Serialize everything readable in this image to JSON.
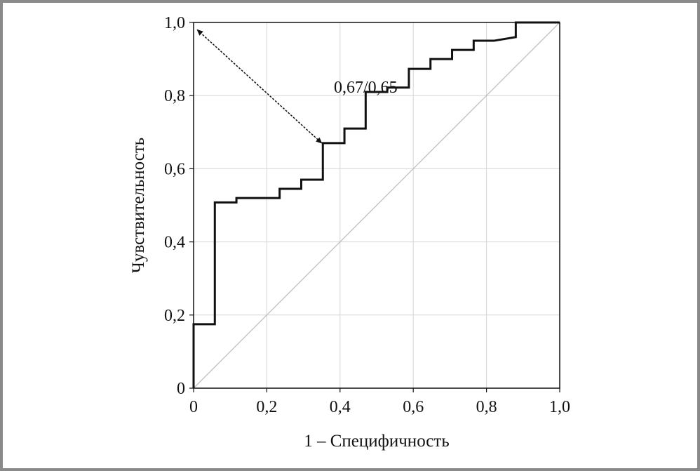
{
  "chart_data": {
    "type": "line",
    "xlabel": "1 – Специфичность",
    "ylabel": "Чувствительность",
    "xlim": [
      0,
      1
    ],
    "ylim": [
      0,
      1
    ],
    "grid": true,
    "x_tick_labels": [
      "0",
      "0,2",
      "0,4",
      "0,6",
      "0,8",
      "1,0"
    ],
    "y_tick_labels": [
      "0",
      "0,2",
      "0,4",
      "0,6",
      "0,8",
      "1,0"
    ],
    "x_ticks": [
      0,
      0.2,
      0.4,
      0.6,
      0.8,
      1.0
    ],
    "y_ticks": [
      0,
      0.2,
      0.4,
      0.6,
      0.8,
      1.0
    ],
    "series": [
      {
        "color": "#111111",
        "points": [
          [
            0,
            0
          ],
          [
            0,
            0.175
          ],
          [
            0.058,
            0.175
          ],
          [
            0.058,
            0.508
          ],
          [
            0.117,
            0.508
          ],
          [
            0.117,
            0.52
          ],
          [
            0.235,
            0.52
          ],
          [
            0.235,
            0.545
          ],
          [
            0.294,
            0.545
          ],
          [
            0.294,
            0.57
          ],
          [
            0.353,
            0.57
          ],
          [
            0.353,
            0.67
          ],
          [
            0.412,
            0.67
          ],
          [
            0.412,
            0.71
          ],
          [
            0.47,
            0.71
          ],
          [
            0.47,
            0.81
          ],
          [
            0.529,
            0.81
          ],
          [
            0.529,
            0.822
          ],
          [
            0.588,
            0.822
          ],
          [
            0.588,
            0.873
          ],
          [
            0.647,
            0.873
          ],
          [
            0.647,
            0.9
          ],
          [
            0.706,
            0.9
          ],
          [
            0.706,
            0.925
          ],
          [
            0.765,
            0.925
          ],
          [
            0.765,
            0.95
          ],
          [
            0.82,
            0.95
          ],
          [
            0.88,
            0.96
          ],
          [
            0.88,
            1.0
          ],
          [
            1.0,
            1.0
          ]
        ]
      },
      {
        "color": "#c0c0c0",
        "points": [
          [
            0,
            0
          ],
          [
            1,
            1
          ]
        ]
      }
    ],
    "annotation": {
      "text": "0,67/0,65",
      "text_at": [
        0.47,
        0.8
      ],
      "arrow_from": [
        0.01,
        0.98
      ],
      "arrow_to": [
        0.35,
        0.67
      ]
    }
  }
}
